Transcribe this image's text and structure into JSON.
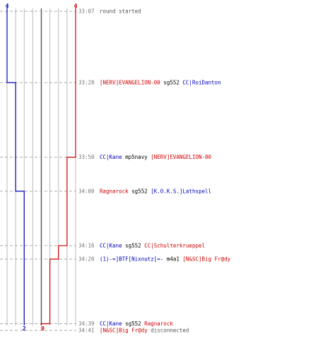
{
  "colors": {
    "team_blue": "#0000bb",
    "team_red": "#cc0000",
    "neutral_text": "#000000",
    "time_text": "#777777",
    "system_text": "#555555",
    "grid_line": "#bbbbbb",
    "center_line": "#555555",
    "dash_line": "#aaaaaa"
  },
  "score_scale": {
    "blue_max_label": "4",
    "red_max_label": "4",
    "blue_final_label": "2",
    "red_final_label": "0"
  },
  "events": [
    {
      "time": "33:07",
      "minutes": 33.117,
      "parts": [
        {
          "text": "round started",
          "team": "system"
        }
      ]
    },
    {
      "time": "33:28",
      "minutes": 33.467,
      "parts": [
        {
          "text": "[NERV]EVANGELION-00",
          "team": "red"
        },
        {
          "text": " sg552 ",
          "team": "neutral"
        },
        {
          "text": "CC|RoiDanton",
          "team": "blue"
        }
      ]
    },
    {
      "time": "33:50",
      "minutes": 33.833,
      "parts": [
        {
          "text": "CC|Kane",
          "team": "blue"
        },
        {
          "text": " mp5navy ",
          "team": "neutral"
        },
        {
          "text": "[NERV]EVANGELION-00",
          "team": "red"
        }
      ]
    },
    {
      "time": "34:00",
      "minutes": 34.0,
      "parts": [
        {
          "text": "Ragnarock",
          "team": "red"
        },
        {
          "text": " sg552 ",
          "team": "neutral"
        },
        {
          "text": "[K.O.K.S.]Lathspell",
          "team": "blue"
        }
      ]
    },
    {
      "time": "34:16",
      "minutes": 34.267,
      "parts": [
        {
          "text": "CC|Kane",
          "team": "blue"
        },
        {
          "text": " sg552 ",
          "team": "neutral"
        },
        {
          "text": "CC|Schulterkrueppel",
          "team": "red"
        }
      ]
    },
    {
      "time": "34:20",
      "minutes": 34.333,
      "parts": [
        {
          "text": "(1)-=]BTF[Nixnutz[=-",
          "team": "blue"
        },
        {
          "text": " m4a1 ",
          "team": "neutral"
        },
        {
          "text": "[N&SC]Big Fr@dy",
          "team": "red"
        }
      ]
    },
    {
      "time": "34:39",
      "minutes": 34.65,
      "parts": [
        {
          "text": "CC|Kane",
          "team": "blue"
        },
        {
          "text": " sg552 ",
          "team": "neutral"
        },
        {
          "text": "Ragnarock",
          "team": "red"
        }
      ]
    },
    {
      "time": "34:41",
      "minutes": 34.683,
      "parts": [
        {
          "text": "[N&SC]Big Fr@dy",
          "team": "red"
        },
        {
          "text": " disconnected",
          "team": "system"
        }
      ]
    }
  ],
  "blue_steps": [
    {
      "minutes": 33.117,
      "level": 4
    },
    {
      "minutes": 33.467,
      "level": 3
    },
    {
      "minutes": 34.0,
      "level": 2
    }
  ],
  "red_steps": [
    {
      "minutes": 33.117,
      "level": 4
    },
    {
      "minutes": 33.833,
      "level": 3
    },
    {
      "minutes": 34.267,
      "level": 2
    },
    {
      "minutes": 34.333,
      "level": 1
    },
    {
      "minutes": 34.65,
      "level": 0
    }
  ],
  "blue_final_level": 2,
  "red_final_level": 0
}
